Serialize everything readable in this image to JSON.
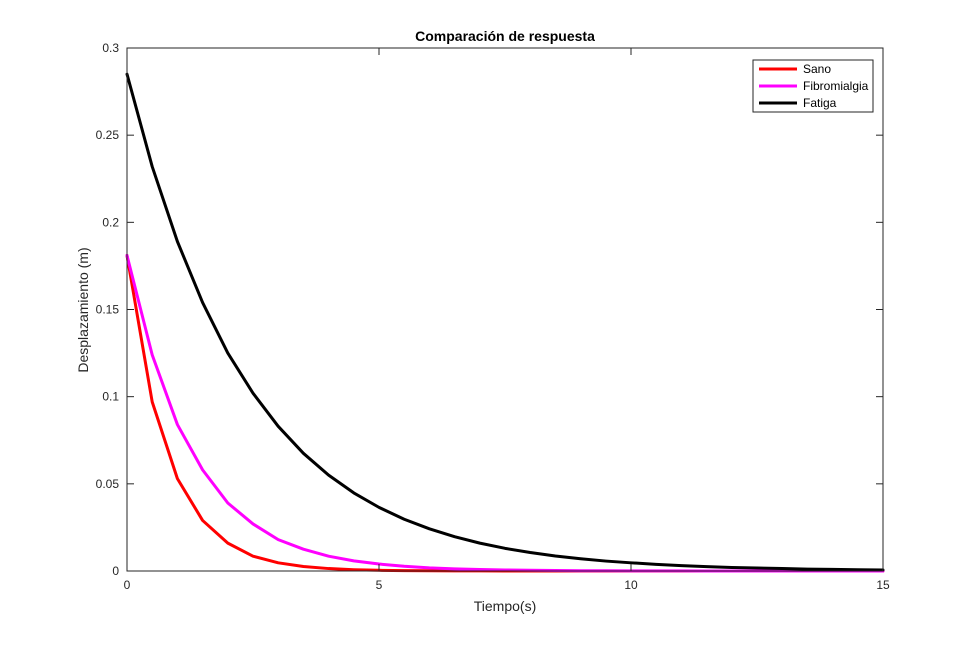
{
  "chart_data": {
    "type": "line",
    "title": "Comparación de respuesta",
    "xlabel": "Tiempo(s)",
    "ylabel": "Desplazamiento (m)",
    "xlim": [
      0,
      15
    ],
    "ylim": [
      0,
      0.3
    ],
    "xticks": [
      0,
      5,
      10,
      15
    ],
    "xtick_labels": [
      "0",
      "5",
      "10",
      "15"
    ],
    "yticks": [
      0,
      0.05,
      0.1,
      0.15,
      0.2,
      0.25,
      0.3
    ],
    "ytick_labels": [
      "0",
      "0.05",
      "0.1",
      "0.15",
      "0.2",
      "0.25",
      "0.3"
    ],
    "grid": false,
    "legend_position": "top-right",
    "x": [
      0,
      0.5,
      1,
      1.5,
      2,
      2.5,
      3,
      3.5,
      4,
      4.5,
      5,
      5.5,
      6,
      6.5,
      7,
      7.5,
      8,
      8.5,
      9,
      9.5,
      10,
      10.5,
      11,
      11.5,
      12,
      12.5,
      13,
      13.5,
      14,
      14.5,
      15
    ],
    "series": [
      {
        "name": "Sano",
        "color": "#ff0000",
        "values": [
          0.181,
          0.097,
          0.053,
          0.029,
          0.016,
          0.0085,
          0.0047,
          0.0026,
          0.0014,
          0.00075,
          0.00041,
          0.00022,
          0.00012,
          7e-05,
          4e-05,
          2e-05,
          1e-05,
          0,
          0,
          0,
          0,
          0,
          0,
          0,
          0,
          0,
          0,
          0,
          0,
          0,
          0
        ]
      },
      {
        "name": "Fibromialgia",
        "color": "#ff00ff",
        "values": [
          0.181,
          0.124,
          0.084,
          0.058,
          0.039,
          0.027,
          0.018,
          0.0125,
          0.0085,
          0.0058,
          0.004,
          0.0027,
          0.0018,
          0.00125,
          0.00085,
          0.00058,
          0.0004,
          0.00027,
          0.00018,
          0.00013,
          9e-05,
          6e-05,
          4e-05,
          3e-05,
          2e-05,
          1e-05,
          1e-05,
          0,
          0,
          0,
          0
        ]
      },
      {
        "name": "Fatiga",
        "color": "#000000",
        "values": [
          0.285,
          0.232,
          0.189,
          0.154,
          0.125,
          0.102,
          0.083,
          0.0675,
          0.055,
          0.0448,
          0.0365,
          0.0297,
          0.0242,
          0.0197,
          0.016,
          0.013,
          0.0106,
          0.0086,
          0.007,
          0.0057,
          0.0047,
          0.0038,
          0.0031,
          0.0025,
          0.002,
          0.0017,
          0.0014,
          0.0011,
          0.0009,
          0.00073,
          0.0006
        ]
      }
    ]
  }
}
